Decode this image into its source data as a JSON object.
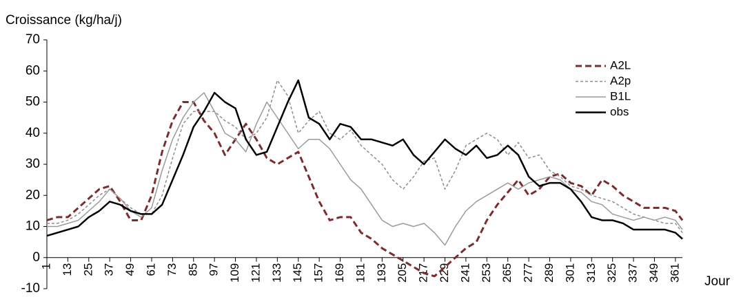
{
  "chart_data": {
    "type": "line",
    "y_label": "Croissance (kg/ha/j)",
    "x_label": "Jour",
    "x": [
      1,
      7,
      13,
      19,
      25,
      31,
      37,
      43,
      49,
      55,
      61,
      67,
      73,
      79,
      85,
      91,
      97,
      103,
      109,
      115,
      121,
      127,
      133,
      139,
      145,
      151,
      157,
      163,
      169,
      175,
      181,
      187,
      193,
      199,
      205,
      211,
      217,
      223,
      229,
      235,
      241,
      247,
      253,
      259,
      265,
      271,
      277,
      283,
      289,
      295,
      301,
      307,
      313,
      319,
      325,
      331,
      337,
      343,
      349,
      355,
      361,
      365
    ],
    "series": [
      {
        "name": "A2L",
        "color": "#7b2c2c",
        "dash": "9,5",
        "width": 3,
        "values": [
          12,
          13,
          13,
          16,
          19,
          22,
          23,
          18,
          12,
          12,
          20,
          34,
          44,
          50,
          50,
          44,
          40,
          33,
          38,
          43,
          38,
          32,
          30,
          32,
          34,
          26,
          18,
          12,
          13,
          13,
          8,
          6,
          3,
          1,
          -1,
          -3,
          -5,
          -6,
          -3,
          0,
          3,
          5,
          12,
          17,
          21,
          25,
          20,
          22,
          26,
          27,
          24,
          23,
          20,
          25,
          23,
          20,
          18,
          16,
          16,
          16,
          15,
          12
        ]
      },
      {
        "name": "A2p",
        "color": "#8c8c8c",
        "dash": "4,3",
        "width": 1.5,
        "values": [
          11,
          11,
          12,
          14,
          17,
          20,
          22,
          19,
          16,
          14,
          14,
          20,
          32,
          43,
          47,
          47,
          47,
          44,
          42,
          38,
          40,
          45,
          57,
          52,
          40,
          44,
          47,
          40,
          38,
          41,
          36,
          33,
          30,
          25,
          22,
          26,
          31,
          32,
          22,
          28,
          36,
          38,
          40,
          38,
          33,
          37,
          32,
          33,
          28,
          26,
          23,
          22,
          20,
          19,
          18,
          16,
          14,
          13,
          12,
          11,
          11,
          8
        ]
      },
      {
        "name": "B1L",
        "color": "#9a9a9a",
        "dash": "none",
        "width": 1.5,
        "values": [
          10,
          10,
          11,
          12,
          15,
          18,
          22,
          19,
          15,
          13,
          16,
          28,
          38,
          45,
          50,
          53,
          47,
          40,
          38,
          34,
          43,
          50,
          45,
          40,
          35,
          38,
          38,
          35,
          30,
          25,
          22,
          17,
          12,
          10,
          11,
          10,
          11,
          8,
          4,
          10,
          15,
          18,
          20,
          22,
          24,
          22,
          24,
          25,
          26,
          25,
          22,
          21,
          18,
          17,
          14,
          13,
          12,
          13,
          12,
          13,
          12,
          9
        ]
      },
      {
        "name": "obs",
        "color": "#000000",
        "dash": "none",
        "width": 2.5,
        "values": [
          7,
          8,
          9,
          10,
          13,
          15,
          18,
          17,
          15,
          14,
          14,
          17,
          25,
          33,
          42,
          47,
          53,
          50,
          48,
          38,
          33,
          34,
          42,
          50,
          57,
          45,
          43,
          38,
          43,
          42,
          38,
          38,
          37,
          36,
          38,
          33,
          30,
          34,
          38,
          35,
          33,
          36,
          32,
          33,
          36,
          33,
          26,
          23,
          24,
          24,
          22,
          18,
          13,
          12,
          12,
          11,
          9,
          9,
          9,
          9,
          8,
          6
        ]
      }
    ],
    "xlim": [
      1,
      365
    ],
    "xticks": [
      1,
      13,
      25,
      37,
      49,
      61,
      73,
      85,
      97,
      109,
      121,
      133,
      145,
      157,
      169,
      181,
      193,
      205,
      217,
      229,
      241,
      253,
      265,
      277,
      289,
      301,
      313,
      325,
      337,
      349,
      361
    ],
    "ylim": [
      -10,
      70
    ],
    "yticks": [
      -10,
      0,
      10,
      20,
      30,
      40,
      50,
      60,
      70
    ],
    "legend": "upper right"
  }
}
